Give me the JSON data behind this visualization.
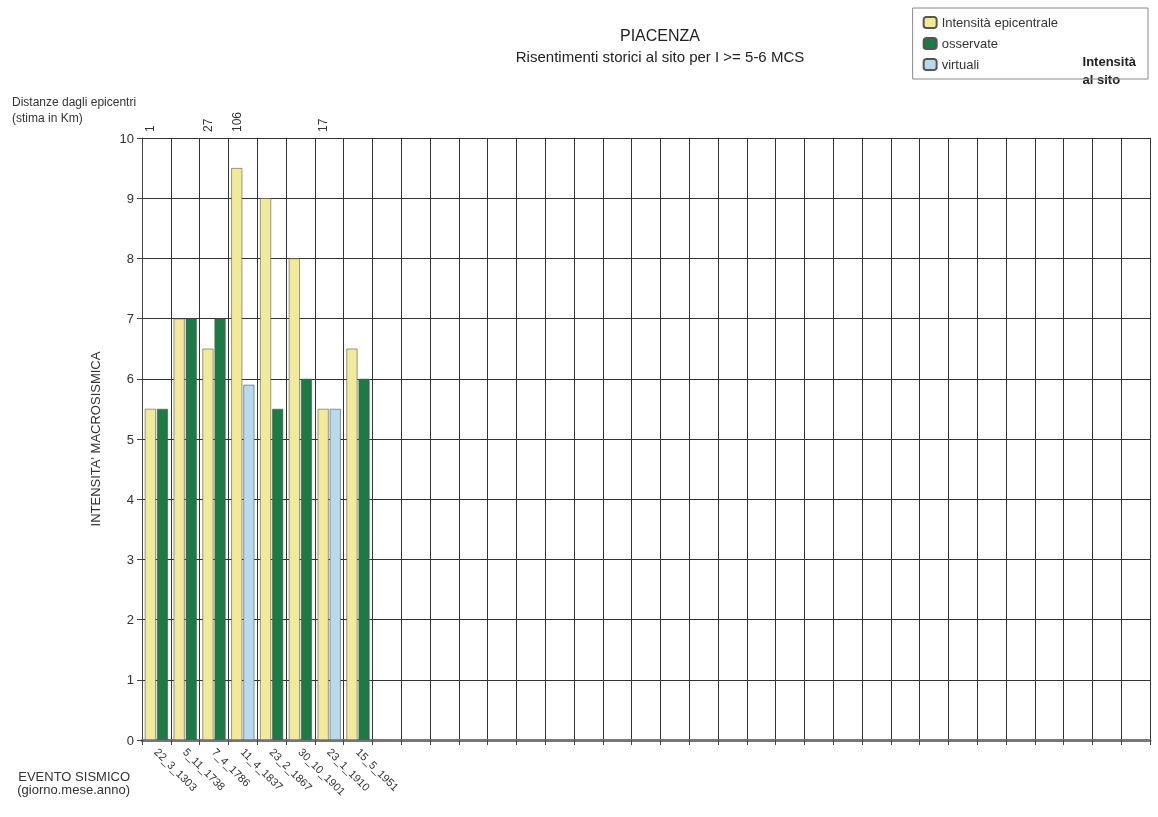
{
  "chart_data": {
    "type": "bar",
    "title": "PIACENZA",
    "subtitle": "Risentimenti storici al sito per I >= 5-6 MCS",
    "xlabel": "EVENTO SISMICO\n(giorno.mese.anno)",
    "ylabel": "INTENSITA' MACROSISMICA",
    "legend_title": "Intensità al sito",
    "categories": [
      "22_3_1303",
      "5_11_1738",
      "7_4_1786",
      "11_4_1837",
      "23_2_1867",
      "30_10_1901",
      "23_1_1910",
      "15_5_1951",
      null,
      null,
      null,
      null,
      null,
      null,
      null,
      null,
      null,
      null,
      null,
      null,
      null,
      null,
      null,
      null,
      null,
      null,
      null,
      null,
      null,
      null,
      null,
      null,
      null,
      null,
      null
    ],
    "series": [
      {
        "name": "Intensità epicentrale",
        "color": "#f3e99a",
        "values": [
          5.5,
          7,
          6.5,
          9.5,
          9,
          8,
          5.5,
          6.5,
          null,
          null,
          null,
          null,
          null,
          null,
          null,
          null,
          null,
          null,
          null,
          null,
          null,
          null,
          null,
          null,
          null,
          null,
          null,
          null,
          null,
          null,
          null,
          null,
          null,
          null,
          null
        ]
      },
      {
        "name": "osservate",
        "color": "#1c7a45",
        "values": [
          5.5,
          7,
          7,
          null,
          5.5,
          6,
          null,
          6,
          null,
          null,
          null,
          null,
          null,
          null,
          null,
          null,
          null,
          null,
          null,
          null,
          null,
          null,
          null,
          null,
          null,
          null,
          null,
          null,
          null,
          null,
          null,
          null,
          null,
          null,
          null
        ]
      },
      {
        "name": "virtuali",
        "color": "#b9d9ec",
        "values": [
          null,
          null,
          null,
          5.9,
          null,
          null,
          5.5,
          null,
          null,
          null,
          null,
          null,
          null,
          null,
          null,
          null,
          null,
          null,
          null,
          null,
          null,
          null,
          null,
          null,
          null,
          null,
          null,
          null,
          null,
          null,
          null,
          null,
          null,
          null,
          null
        ]
      }
    ],
    "ylim": [
      0,
      10
    ],
    "yticks": [
      0,
      1,
      2,
      3,
      4,
      5,
      6,
      7,
      8,
      9,
      10
    ],
    "grid": true,
    "legend": "top right",
    "annotations": [
      "Distanze dagli epicentri\n(stima in Km)",
      "1",
      "27",
      "106",
      "17"
    ]
  }
}
